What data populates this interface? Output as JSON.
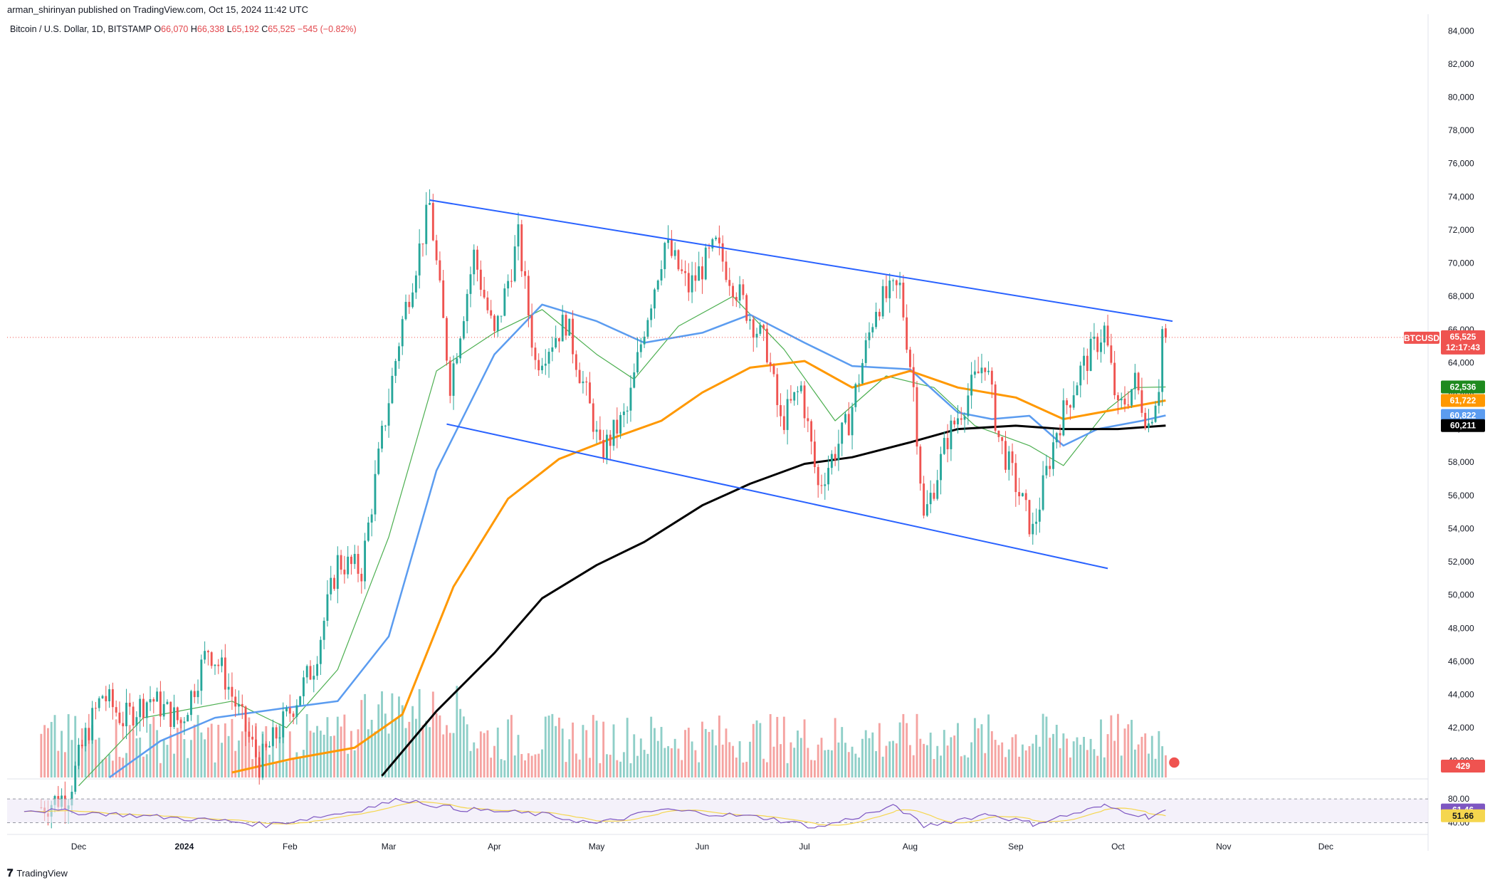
{
  "header": {
    "publisher": "arman_shirinyan published on TradingView.com, Oct 15, 2024 11:42 UTC",
    "symbol_title": "Bitcoin / U.S. Dollar, 1D, BITSTAMP",
    "ohlc": {
      "o_label": "O",
      "o_value": "66,070",
      "h_label": "H",
      "h_value": "66,338",
      "l_label": "L",
      "l_value": "65,192",
      "c_label": "C",
      "c_value": "65,525",
      "change": "−545 (−0.82%)"
    }
  },
  "footer": {
    "logo": "TradingView"
  },
  "colors": {
    "up": "#26a69a",
    "down": "#ef5350",
    "vol_up": "#8fcfc8",
    "vol_down": "#f5a3a1",
    "channel": "#2962ff",
    "sma_fast": "#4caf50",
    "sma_50": "#5b9cf0",
    "sma_100": "#ff9800",
    "sma_200": "#000000",
    "rsi": "#7e57c2",
    "rsi_ma": "#f5d64e"
  },
  "tags": {
    "price_symbol": "BTCUSD",
    "price_value": "65,525",
    "countdown": "12:17:43",
    "sma_fast": "62,536",
    "sma_100": "61,722",
    "sma_50": "60,822",
    "sma_200": "60,211",
    "volume": "429",
    "rsi": "61.46",
    "rsi_ma": "51.66"
  },
  "chart_data": {
    "type": "candlestick",
    "title": "Bitcoin / U.S. Dollar, 1D, BITSTAMP",
    "x_labels": [
      "Dec",
      "2024",
      "Feb",
      "Mar",
      "Apr",
      "May",
      "Jun",
      "Jul",
      "Aug",
      "Sep",
      "Oct",
      "Nov",
      "Dec"
    ],
    "x_range": [
      "2023-11-10",
      "2024-12-31"
    ],
    "y_ticks": [
      "84,000",
      "82,000",
      "80,000",
      "78,000",
      "76,000",
      "74,000",
      "72,000",
      "70,000",
      "68,000",
      "66,000",
      "64,000",
      "62,000",
      "60,000",
      "58,000",
      "56,000",
      "54,000",
      "52,000",
      "50,000",
      "48,000",
      "46,000",
      "44,000",
      "42,000",
      "40,000"
    ],
    "ylim": [
      39000,
      85000
    ],
    "last_price": 65525,
    "channel": {
      "upper": [
        [
          "2024-03-13",
          73800
        ],
        [
          "2024-10-17",
          66500
        ]
      ],
      "lower": [
        [
          "2024-03-18",
          60300
        ],
        [
          "2024-09-28",
          51600
        ]
      ]
    },
    "price_path": [
      [
        "2023-11-20",
        37200
      ],
      [
        "2023-11-28",
        38000
      ],
      [
        "2023-12-03",
        41500
      ],
      [
        "2023-12-08",
        44000
      ],
      [
        "2023-12-14",
        42500
      ],
      [
        "2023-12-22",
        43800
      ],
      [
        "2023-12-31",
        42300
      ],
      [
        "2024-01-08",
        46800
      ],
      [
        "2024-01-12",
        45500
      ],
      [
        "2024-01-23",
        39800
      ],
      [
        "2024-01-31",
        42600
      ],
      [
        "2024-02-08",
        45800
      ],
      [
        "2024-02-15",
        52000
      ],
      [
        "2024-02-22",
        51500
      ],
      [
        "2024-02-28",
        59500
      ],
      [
        "2024-03-05",
        66500
      ],
      [
        "2024-03-13",
        73500
      ],
      [
        "2024-03-19",
        62800
      ],
      [
        "2024-03-26",
        70500
      ],
      [
        "2024-04-01",
        65500
      ],
      [
        "2024-04-08",
        71500
      ],
      [
        "2024-04-13",
        64000
      ],
      [
        "2024-04-22",
        66500
      ],
      [
        "2024-04-30",
        60500
      ],
      [
        "2024-05-02",
        58500
      ],
      [
        "2024-05-10",
        61000
      ],
      [
        "2024-05-15",
        66200
      ],
      [
        "2024-05-21",
        71200
      ],
      [
        "2024-05-28",
        68500
      ],
      [
        "2024-06-05",
        71000
      ],
      [
        "2024-06-12",
        68000
      ],
      [
        "2024-06-20",
        64800
      ],
      [
        "2024-06-24",
        60300
      ],
      [
        "2024-06-30",
        62500
      ],
      [
        "2024-07-05",
        56500
      ],
      [
        "2024-07-14",
        60500
      ],
      [
        "2024-07-22",
        67500
      ],
      [
        "2024-07-29",
        68500
      ],
      [
        "2024-08-02",
        62500
      ],
      [
        "2024-08-05",
        54500
      ],
      [
        "2024-08-12",
        59500
      ],
      [
        "2024-08-23",
        64200
      ],
      [
        "2024-08-27",
        59500
      ],
      [
        "2024-09-06",
        53800
      ],
      [
        "2024-09-13",
        60000
      ],
      [
        "2024-09-20",
        63500
      ],
      [
        "2024-09-27",
        66000
      ],
      [
        "2024-10-01",
        61000
      ],
      [
        "2024-10-06",
        62800
      ],
      [
        "2024-10-10",
        60300
      ],
      [
        "2024-10-13",
        62800
      ],
      [
        "2024-10-14",
        66000
      ],
      [
        "2024-10-15",
        65525
      ]
    ],
    "series": [
      {
        "name": "SMA fast",
        "points": [
          [
            "2023-12-01",
            38500
          ],
          [
            "2023-12-20",
            42600
          ],
          [
            "2024-01-15",
            43600
          ],
          [
            "2024-01-31",
            42000
          ],
          [
            "2024-02-15",
            45500
          ],
          [
            "2024-03-01",
            53500
          ],
          [
            "2024-03-15",
            63500
          ],
          [
            "2024-04-01",
            65800
          ],
          [
            "2024-04-15",
            67200
          ],
          [
            "2024-05-01",
            64500
          ],
          [
            "2024-05-12",
            63000
          ],
          [
            "2024-05-25",
            66200
          ],
          [
            "2024-06-10",
            68000
          ],
          [
            "2024-06-25",
            64800
          ],
          [
            "2024-07-10",
            60500
          ],
          [
            "2024-07-25",
            63200
          ],
          [
            "2024-08-08",
            62500
          ],
          [
            "2024-08-20",
            60200
          ],
          [
            "2024-09-05",
            59000
          ],
          [
            "2024-09-15",
            57800
          ],
          [
            "2024-09-28",
            61200
          ],
          [
            "2024-10-06",
            62500
          ],
          [
            "2024-10-15",
            62536
          ]
        ]
      },
      {
        "name": "SMA 50",
        "points": [
          [
            "2023-12-10",
            39000
          ],
          [
            "2023-12-25",
            41200
          ],
          [
            "2024-01-10",
            42600
          ],
          [
            "2024-01-31",
            43200
          ],
          [
            "2024-02-15",
            43600
          ],
          [
            "2024-03-01",
            47500
          ],
          [
            "2024-03-15",
            57500
          ],
          [
            "2024-04-01",
            64500
          ],
          [
            "2024-04-15",
            67500
          ],
          [
            "2024-05-01",
            66500
          ],
          [
            "2024-05-15",
            65200
          ],
          [
            "2024-06-01",
            65800
          ],
          [
            "2024-06-15",
            66900
          ],
          [
            "2024-07-01",
            65200
          ],
          [
            "2024-07-15",
            63800
          ],
          [
            "2024-08-01",
            63600
          ],
          [
            "2024-08-15",
            61000
          ],
          [
            "2024-08-25",
            60600
          ],
          [
            "2024-09-05",
            60800
          ],
          [
            "2024-09-15",
            59000
          ],
          [
            "2024-09-25",
            60000
          ],
          [
            "2024-10-08",
            60500
          ],
          [
            "2024-10-15",
            60822
          ]
        ]
      },
      {
        "name": "SMA 100",
        "points": [
          [
            "2024-01-15",
            39300
          ],
          [
            "2024-02-01",
            40100
          ],
          [
            "2024-02-20",
            40800
          ],
          [
            "2024-03-05",
            42800
          ],
          [
            "2024-03-20",
            50500
          ],
          [
            "2024-04-05",
            55800
          ],
          [
            "2024-04-20",
            58200
          ],
          [
            "2024-05-05",
            59400
          ],
          [
            "2024-05-20",
            60500
          ],
          [
            "2024-06-01",
            62200
          ],
          [
            "2024-06-15",
            63700
          ],
          [
            "2024-07-01",
            64100
          ],
          [
            "2024-07-15",
            62500
          ],
          [
            "2024-08-01",
            63500
          ],
          [
            "2024-08-15",
            62500
          ],
          [
            "2024-09-01",
            61900
          ],
          [
            "2024-09-15",
            60600
          ],
          [
            "2024-10-01",
            61200
          ],
          [
            "2024-10-15",
            61722
          ]
        ]
      },
      {
        "name": "SMA 200",
        "points": [
          [
            "2024-02-28",
            39100
          ],
          [
            "2024-03-15",
            43000
          ],
          [
            "2024-04-01",
            46500
          ],
          [
            "2024-04-15",
            49800
          ],
          [
            "2024-05-01",
            51800
          ],
          [
            "2024-05-15",
            53200
          ],
          [
            "2024-06-01",
            55400
          ],
          [
            "2024-06-15",
            56700
          ],
          [
            "2024-07-01",
            57900
          ],
          [
            "2024-07-15",
            58300
          ],
          [
            "2024-08-01",
            59200
          ],
          [
            "2024-08-15",
            60000
          ],
          [
            "2024-09-01",
            60200
          ],
          [
            "2024-09-15",
            60000
          ],
          [
            "2024-10-01",
            60000
          ],
          [
            "2024-10-15",
            60211
          ]
        ]
      }
    ],
    "rsi": {
      "levels": [
        "80.00",
        "40.00"
      ],
      "value": 61.46,
      "ma_value": 51.66,
      "path": [
        [
          "2023-11-15",
          62
        ],
        [
          "2023-12-10",
          55
        ],
        [
          "2024-01-15",
          42
        ],
        [
          "2024-01-25",
          36
        ],
        [
          "2024-02-20",
          60
        ],
        [
          "2024-03-05",
          80
        ],
        [
          "2024-03-20",
          64
        ],
        [
          "2024-04-15",
          54
        ],
        [
          "2024-05-01",
          38
        ],
        [
          "2024-05-20",
          62
        ],
        [
          "2024-06-20",
          48
        ],
        [
          "2024-07-05",
          32
        ],
        [
          "2024-07-28",
          68
        ],
        [
          "2024-08-05",
          34
        ],
        [
          "2024-08-24",
          55
        ],
        [
          "2024-09-06",
          38
        ],
        [
          "2024-09-27",
          68
        ],
        [
          "2024-10-10",
          50
        ],
        [
          "2024-10-15",
          61.46
        ]
      ]
    }
  }
}
